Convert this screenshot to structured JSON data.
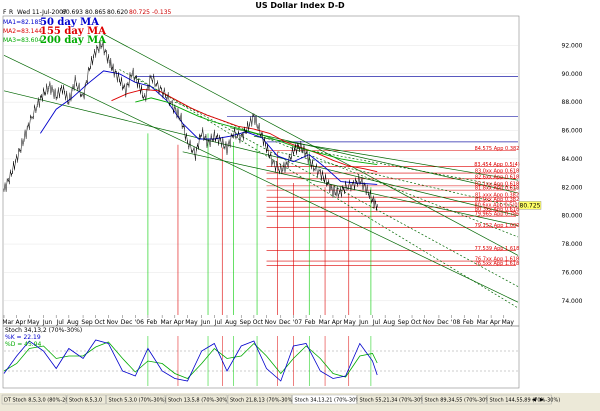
{
  "chart_data": {
    "type": "line",
    "title": "US Dollar Index  D-D",
    "header": {
      "mode_letters": [
        "F",
        "R"
      ],
      "date": "Wed 11-Jul-2007",
      "ohlc": [
        "80.693",
        "80.865",
        "80.620",
        "80.725"
      ],
      "change": "-0.135"
    },
    "ma_readouts": [
      {
        "label": "MA1=82.185",
        "name": "50 day MA",
        "color": "#0000cc"
      },
      {
        "label": "MA2=83.144",
        "name": "155 day MA",
        "color": "#dd0000"
      },
      {
        "label": "MA3=83.604",
        "name": "200 day MA",
        "color": "#00aa00"
      }
    ],
    "price_axis": {
      "min": 73,
      "max": 94,
      "ticks": [
        "92.000",
        "90.000",
        "88.000",
        "86.000",
        "84.000",
        "82.000",
        "80.000",
        "78.000",
        "76.000",
        "74.000"
      ],
      "last_price_label": "80.725",
      "last_price": 80.725
    },
    "time_axis": {
      "start": 2005.17,
      "end": 2008.42,
      "months": [
        {
          "label": "Mar",
          "t": 2005.17
        },
        {
          "label": "Apr",
          "t": 2005.25
        },
        {
          "label": "May",
          "t": 2005.33
        },
        {
          "label": "Jun",
          "t": 2005.42
        },
        {
          "label": "Jul",
          "t": 2005.5
        },
        {
          "label": "Aug",
          "t": 2005.58
        },
        {
          "label": "Sep",
          "t": 2005.67
        },
        {
          "label": "Oct",
          "t": 2005.75
        },
        {
          "label": "Nov",
          "t": 2005.83
        },
        {
          "label": "Dec",
          "t": 2005.92
        },
        {
          "label": "'06",
          "t": 2006.0
        },
        {
          "label": "Feb",
          "t": 2006.08
        },
        {
          "label": "Mar",
          "t": 2006.17
        },
        {
          "label": "Apr",
          "t": 2006.25
        },
        {
          "label": "May",
          "t": 2006.33
        },
        {
          "label": "Jun",
          "t": 2006.42
        },
        {
          "label": "Jul",
          "t": 2006.5
        },
        {
          "label": "Aug",
          "t": 2006.58
        },
        {
          "label": "Sep",
          "t": 2006.67
        },
        {
          "label": "Oct",
          "t": 2006.75
        },
        {
          "label": "Nov",
          "t": 2006.83
        },
        {
          "label": "Dec",
          "t": 2006.92
        },
        {
          "label": "'07",
          "t": 2007.0
        },
        {
          "label": "Feb",
          "t": 2007.08
        },
        {
          "label": "Mar",
          "t": 2007.17
        },
        {
          "label": "Apr",
          "t": 2007.25
        },
        {
          "label": "May",
          "t": 2007.33
        },
        {
          "label": "Jun",
          "t": 2007.42
        },
        {
          "label": "Jul",
          "t": 2007.5
        },
        {
          "label": "Aug",
          "t": 2007.58
        },
        {
          "label": "Sep",
          "t": 2007.67
        },
        {
          "label": "Oct",
          "t": 2007.75
        },
        {
          "label": "Nov",
          "t": 2007.83
        },
        {
          "label": "Dec",
          "t": 2007.92
        },
        {
          "label": "'08",
          "t": 2008.0
        },
        {
          "label": "Feb",
          "t": 2008.08
        },
        {
          "label": "Mar",
          "t": 2008.17
        },
        {
          "label": "Apr",
          "t": 2008.25
        },
        {
          "label": "May",
          "t": 2008.33
        }
      ]
    },
    "price": {
      "t": [
        2005.17,
        2005.21,
        2005.25,
        2005.29,
        2005.33,
        2005.38,
        2005.42,
        2005.46,
        2005.5,
        2005.54,
        2005.58,
        2005.62,
        2005.67,
        2005.71,
        2005.75,
        2005.79,
        2005.83,
        2005.86,
        2005.9,
        2005.94,
        2005.98,
        2006.02,
        2006.06,
        2006.1,
        2006.15,
        2006.2,
        2006.25,
        2006.29,
        2006.33,
        2006.38,
        2006.42,
        2006.46,
        2006.5,
        2006.54,
        2006.58,
        2006.62,
        2006.67,
        2006.71,
        2006.75,
        2006.79,
        2006.83,
        2006.87,
        2006.92,
        2006.96,
        2007.0,
        2007.04,
        2007.08,
        2007.12,
        2007.17,
        2007.21,
        2007.25,
        2007.29,
        2007.33,
        2007.38,
        2007.42,
        2007.46,
        2007.5,
        2007.53
      ],
      "close": [
        81.8,
        82.8,
        84.0,
        85.2,
        86.5,
        87.8,
        88.6,
        89.1,
        88.4,
        89.0,
        88.0,
        89.5,
        88.3,
        90.4,
        91.6,
        92.1,
        91.0,
        90.3,
        89.6,
        88.8,
        90.1,
        89.3,
        88.2,
        89.8,
        89.0,
        88.4,
        87.5,
        86.8,
        85.2,
        84.3,
        85.9,
        85.1,
        85.6,
        85.3,
        84.7,
        85.8,
        85.5,
        86.2,
        87.0,
        85.9,
        84.8,
        83.7,
        83.2,
        83.6,
        84.6,
        84.9,
        84.4,
        83.5,
        83.0,
        82.4,
        81.7,
        81.6,
        82.0,
        82.2,
        82.5,
        81.9,
        81.1,
        80.7
      ]
    },
    "moving_averages": [
      {
        "name": "50 day MA",
        "color": "#0000cc",
        "t": [
          2005.4,
          2005.5,
          2005.6,
          2005.7,
          2005.8,
          2005.9,
          2006.0,
          2006.1,
          2006.2,
          2006.3,
          2006.4,
          2006.5,
          2006.6,
          2006.7,
          2006.8,
          2006.9,
          2007.0,
          2007.1,
          2007.2,
          2007.3,
          2007.4,
          2007.53
        ],
        "values": [
          85.8,
          87.5,
          88.3,
          89.3,
          90.2,
          90.0,
          89.4,
          89.1,
          88.1,
          86.5,
          85.4,
          85.4,
          85.6,
          85.9,
          85.5,
          84.2,
          83.8,
          84.3,
          83.4,
          82.4,
          82.3,
          82.2
        ]
      },
      {
        "name": "155 day MA",
        "color": "#dd0000",
        "t": [
          2005.85,
          2005.95,
          2006.05,
          2006.15,
          2006.25,
          2006.35,
          2006.45,
          2006.55,
          2006.65,
          2006.75,
          2006.85,
          2006.95,
          2007.05,
          2007.15,
          2007.25,
          2007.35,
          2007.45,
          2007.53
        ],
        "values": [
          88.1,
          88.6,
          88.9,
          88.8,
          88.2,
          87.6,
          87.1,
          86.7,
          86.3,
          86.1,
          85.8,
          85.2,
          84.8,
          84.4,
          83.9,
          83.5,
          83.3,
          83.1
        ]
      },
      {
        "name": "200 day MA",
        "color": "#00aa00",
        "t": [
          2006.0,
          2006.1,
          2006.2,
          2006.3,
          2006.4,
          2006.5,
          2006.6,
          2006.7,
          2006.8,
          2006.9,
          2007.0,
          2007.1,
          2007.2,
          2007.3,
          2007.4,
          2007.53
        ],
        "values": [
          88.0,
          88.3,
          88.0,
          87.5,
          87.0,
          86.6,
          86.3,
          86.0,
          85.7,
          85.3,
          84.9,
          84.6,
          84.3,
          84.0,
          83.8,
          83.6
        ]
      }
    ],
    "horizontal_levels": [
      {
        "value": 89.8,
        "color": "#2222aa",
        "t0": 2006.0
      },
      {
        "value": 87.0,
        "color": "#2222aa",
        "t0": 2006.58
      },
      {
        "value": 85.2,
        "color": "#2222aa",
        "t0": 2006.83
      }
    ],
    "fib_levels": [
      {
        "value": 84.575,
        "label": "84.575 App 0.382",
        "color": "#dd0000"
      },
      {
        "value": 83.454,
        "label": "83.454 App 0.5(4)",
        "color": "#dd0000"
      },
      {
        "value": 83.0,
        "label": "83.0xx App 0.618",
        "color": "#dd0000"
      },
      {
        "value": 82.6,
        "label": "82.6xx App 0.618",
        "color": "#dd0000"
      },
      {
        "value": 82.1,
        "label": "82.1xx App 0.618",
        "color": "#dd0000"
      },
      {
        "value": 81.8,
        "label": "81.8xx App 0.618",
        "color": "#dd0000"
      },
      {
        "value": 81.3,
        "label": "81.xxx App 0.382",
        "color": "#dd0000"
      },
      {
        "value": 81.0,
        "label": "81.0xx App 0.382",
        "color": "#dd0000"
      },
      {
        "value": 80.6,
        "label": "80.6xx App 0.5(0)",
        "color": "#dd0000"
      },
      {
        "value": 80.3,
        "label": "80.3xx App 0.618",
        "color": "#dd0000"
      },
      {
        "value": 79.965,
        "label": "79.965 App 0.786",
        "color": "#dd0000"
      },
      {
        "value": 79.152,
        "label": "79.152 App 1.000",
        "color": "#dd0000"
      },
      {
        "value": 77.539,
        "label": "77.539 App 1.618",
        "color": "#dd0000"
      },
      {
        "value": 76.8,
        "label": "76.7xx App 1.618",
        "color": "#dd0000"
      },
      {
        "value": 76.5,
        "label": "76.5xx App 1.618",
        "color": "#dd0000"
      }
    ],
    "trendlines": [
      {
        "t0": 2005.17,
        "v0": 91.3,
        "t1": 2008.42,
        "v1": 73.9,
        "color": "#006600",
        "dash": false
      },
      {
        "t0": 2005.17,
        "v0": 88.8,
        "t1": 2008.42,
        "v1": 80.0,
        "color": "#006600",
        "dash": false
      },
      {
        "t0": 2005.8,
        "v0": 92.8,
        "t1": 2008.42,
        "v1": 77.2,
        "color": "#006600",
        "dash": false
      },
      {
        "t0": 2005.9,
        "v0": 90.3,
        "t1": 2008.42,
        "v1": 75.0,
        "color": "#006600",
        "dash": true
      },
      {
        "t0": 2006.0,
        "v0": 89.8,
        "t1": 2008.42,
        "v1": 73.5,
        "color": "#006600",
        "dash": true
      },
      {
        "t0": 2006.25,
        "v0": 88.0,
        "t1": 2008.42,
        "v1": 78.5,
        "color": "#006600",
        "dash": true
      },
      {
        "t0": 2006.3,
        "v0": 84.5,
        "t1": 2008.42,
        "v1": 79.3,
        "color": "#006600",
        "dash": false
      },
      {
        "t0": 2006.6,
        "v0": 86.2,
        "t1": 2008.42,
        "v1": 81.6,
        "color": "#006600",
        "dash": false
      },
      {
        "t0": 2006.75,
        "v0": 85.6,
        "t1": 2008.42,
        "v1": 82.5,
        "color": "#006600",
        "dash": false
      },
      {
        "t0": 2006.9,
        "v0": 84.5,
        "t1": 2008.42,
        "v1": 80.6,
        "color": "#006600",
        "dash": true
      },
      {
        "t0": 2007.0,
        "v0": 84.8,
        "t1": 2008.42,
        "v1": 81.9,
        "color": "#006600",
        "dash": true
      }
    ],
    "vertical_markers": [
      {
        "t": 2006.08,
        "color": "#00cc00",
        "v_top": 85.8
      },
      {
        "t": 2006.46,
        "color": "#00cc00",
        "v_top": 85.8
      },
      {
        "t": 2006.62,
        "color": "#00cc00",
        "v_top": 85.2
      },
      {
        "t": 2006.77,
        "color": "#00cc00",
        "v_top": 85.0
      },
      {
        "t": 2007.1,
        "color": "#00cc00",
        "v_top": 84.5
      },
      {
        "t": 2007.49,
        "color": "#00cc00",
        "v_top": 82.0
      },
      {
        "t": 2006.27,
        "color": "#dd0000",
        "v_top": 85.0
      },
      {
        "t": 2006.55,
        "color": "#dd0000",
        "v_top": 84.8
      },
      {
        "t": 2006.9,
        "color": "#dd0000",
        "v_top": 84.5
      },
      {
        "t": 2007.0,
        "color": "#dd0000",
        "v_top": 82.3
      },
      {
        "t": 2007.35,
        "color": "#dd0000",
        "v_top": 81.6
      },
      {
        "t": 2007.2,
        "color": "#dd0000",
        "v_top": 82.0
      }
    ],
    "stochastic": {
      "label": "Stoch 34,13,2 (70%-30%)",
      "k_label": "%K = 22.19",
      "d_label": "%D = 45.94",
      "levels": [
        70,
        30
      ],
      "k": {
        "t": [
          2005.17,
          2005.25,
          2005.33,
          2005.42,
          2005.5,
          2005.58,
          2005.67,
          2005.75,
          2005.83,
          2005.92,
          2006.0,
          2006.08,
          2006.17,
          2006.25,
          2006.33,
          2006.42,
          2006.5,
          2006.58,
          2006.67,
          2006.75,
          2006.83,
          2006.92,
          2007.0,
          2007.08,
          2007.17,
          2007.25,
          2007.33,
          2007.42,
          2007.5,
          2007.53
        ],
        "values": [
          25,
          60,
          90,
          70,
          35,
          75,
          55,
          92,
          85,
          30,
          20,
          75,
          30,
          15,
          10,
          70,
          85,
          30,
          80,
          90,
          35,
          10,
          80,
          85,
          30,
          15,
          20,
          85,
          50,
          22
        ]
      },
      "d": {
        "t": [
          2005.17,
          2005.25,
          2005.33,
          2005.42,
          2005.5,
          2005.58,
          2005.67,
          2005.75,
          2005.83,
          2005.92,
          2006.0,
          2006.08,
          2006.17,
          2006.25,
          2006.33,
          2006.42,
          2006.5,
          2006.58,
          2006.67,
          2006.75,
          2006.83,
          2006.92,
          2007.0,
          2007.08,
          2007.17,
          2007.25,
          2007.33,
          2007.42,
          2007.5,
          2007.53
        ],
        "values": [
          30,
          45,
          75,
          80,
          55,
          60,
          60,
          78,
          88,
          55,
          28,
          50,
          45,
          25,
          15,
          45,
          75,
          55,
          60,
          85,
          60,
          25,
          55,
          80,
          55,
          25,
          18,
          60,
          65,
          46
        ]
      }
    },
    "bottom_tabs": [
      "DT Stoch 8,5,3,0 (80%-20%)",
      "Stoch 8,5,3,0",
      "Stoch 5,3,0 (70%-30%)",
      "Stoch 13,5,8 (70%-30%)",
      "Stoch 21,8,13 (70%-30%)",
      "Stoch 34,13,21 (70%-30%)",
      "Stoch 55,21,34 (70%-30%)",
      "Stoch 89,34,55 (70%-30%)",
      "Stoch 144,55,89 (70%-30%)"
    ]
  }
}
